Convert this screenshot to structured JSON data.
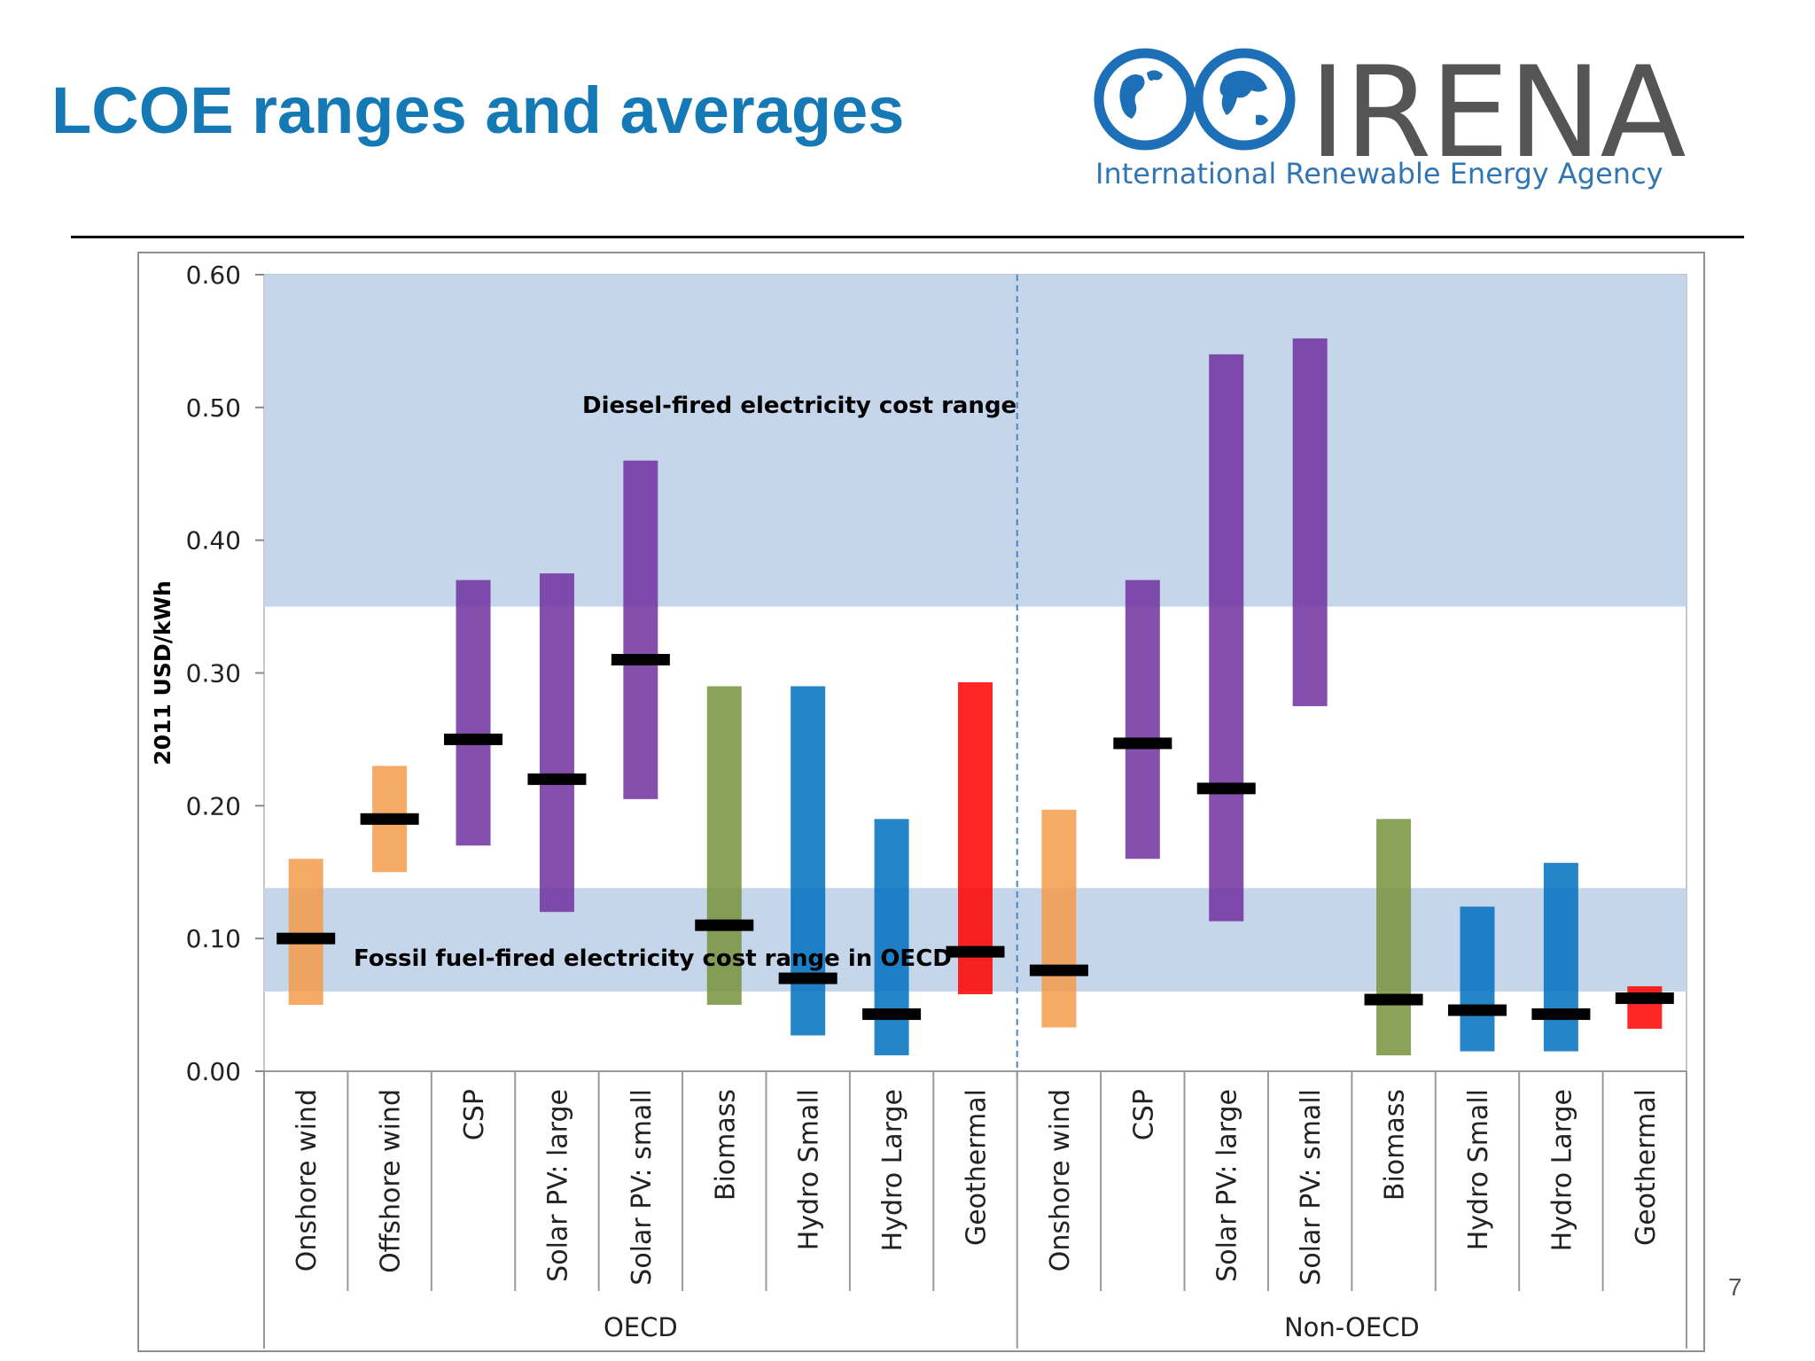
{
  "slide": {
    "title": "LCOE ranges and averages",
    "page_number": "7"
  },
  "logo": {
    "wordmark": "IRENA",
    "tagline": "International Renewable Energy Agency"
  },
  "chart_data": {
    "type": "bar",
    "subtype": "floating-range-with-average",
    "ylabel": "2011 USD/kWh",
    "ylim": [
      0,
      0.6
    ],
    "yticks": [
      "0.00",
      "0.10",
      "0.20",
      "0.30",
      "0.40",
      "0.50",
      "0.60"
    ],
    "grid": false,
    "bands": [
      {
        "label": "Diesel-fired electricity cost range",
        "range": [
          0.35,
          0.6
        ],
        "color": "#c5d6ea"
      },
      {
        "label": "Fossil fuel-fired electricity cost range in OECD",
        "range": [
          0.06,
          0.138
        ],
        "color": "#c5d6ea"
      }
    ],
    "groups": [
      {
        "name": "OECD",
        "categories": [
          {
            "label": "Onshore wind",
            "min": 0.05,
            "max": 0.16,
            "avg": 0.1,
            "color": "#f39b4b"
          },
          {
            "label": "Offshore wind",
            "min": 0.15,
            "max": 0.23,
            "avg": 0.19,
            "color": "#f39b4b"
          },
          {
            "label": "CSP",
            "min": 0.17,
            "max": 0.37,
            "avg": 0.25,
            "color": "#7030a0"
          },
          {
            "label": "Solar PV: large",
            "min": 0.12,
            "max": 0.375,
            "avg": 0.22,
            "color": "#7030a0"
          },
          {
            "label": "Solar PV: small",
            "min": 0.205,
            "max": 0.46,
            "avg": 0.31,
            "color": "#7030a0"
          },
          {
            "label": "Biomass",
            "min": 0.05,
            "max": 0.29,
            "avg": 0.11,
            "color": "#77933c"
          },
          {
            "label": "Hydro Small",
            "min": 0.027,
            "max": 0.29,
            "avg": 0.07,
            "color": "#0070c0"
          },
          {
            "label": "Hydro Large",
            "min": 0.012,
            "max": 0.19,
            "avg": 0.043,
            "color": "#0070c0"
          },
          {
            "label": "Geothermal",
            "min": 0.058,
            "max": 0.293,
            "avg": 0.09,
            "color": "#ff0000"
          }
        ]
      },
      {
        "name": "Non-OECD",
        "categories": [
          {
            "label": "Onshore wind",
            "min": 0.033,
            "max": 0.197,
            "avg": 0.076,
            "color": "#f39b4b"
          },
          {
            "label": "CSP",
            "min": 0.16,
            "max": 0.37,
            "avg": 0.247,
            "color": "#7030a0"
          },
          {
            "label": "Solar PV: large",
            "min": 0.113,
            "max": 0.54,
            "avg": 0.213,
            "color": "#7030a0"
          },
          {
            "label": "Solar PV: small",
            "min": 0.275,
            "max": 0.552,
            "avg": null,
            "color": "#7030a0"
          },
          {
            "label": "Biomass",
            "min": 0.012,
            "max": 0.19,
            "avg": 0.054,
            "color": "#77933c"
          },
          {
            "label": "Hydro Small",
            "min": 0.015,
            "max": 0.124,
            "avg": 0.046,
            "color": "#0070c0"
          },
          {
            "label": "Hydro Large",
            "min": 0.015,
            "max": 0.157,
            "avg": 0.043,
            "color": "#0070c0"
          },
          {
            "label": "Geothermal",
            "min": 0.032,
            "max": 0.064,
            "avg": 0.055,
            "color": "#ff0000"
          }
        ]
      }
    ],
    "average_marker_color": "#000000"
  }
}
